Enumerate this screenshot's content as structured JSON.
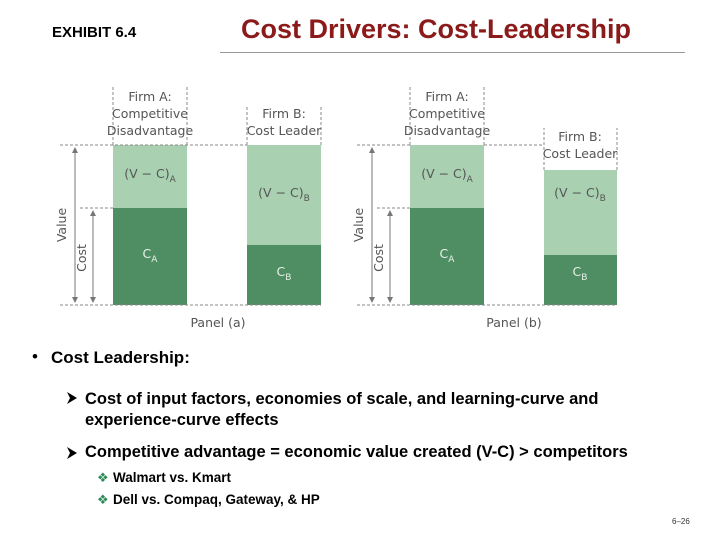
{
  "header": {
    "exhibit": "EXHIBIT 6.4",
    "title": "Cost Drivers: Cost-Leadership"
  },
  "panels": [
    {
      "label": "Panel (a)",
      "axis_value": "Value",
      "axis_cost": "Cost",
      "firms": [
        {
          "name_lines": [
            "Firm A:",
            "Competitive",
            "Disadvantage"
          ],
          "top": {
            "text": "(V − C)",
            "sub": "A"
          },
          "bottom": {
            "text": "C",
            "sub": "A"
          }
        },
        {
          "name_lines": [
            "Firm B:",
            "Cost Leader"
          ],
          "top": {
            "text": "(V − C)",
            "sub": "B"
          },
          "bottom": {
            "text": "C",
            "sub": "B"
          }
        }
      ]
    },
    {
      "label": "Panel (b)",
      "axis_value": "Value",
      "axis_cost": "Cost",
      "firms": [
        {
          "name_lines": [
            "Firm A:",
            "Competitive",
            "Disadvantage"
          ],
          "top": {
            "text": "(V − C)",
            "sub": "A"
          },
          "bottom": {
            "text": "C",
            "sub": "A"
          }
        },
        {
          "name_lines": [
            "Firm B:",
            "Cost Leader"
          ],
          "top": {
            "text": "(V − C)",
            "sub": "B"
          },
          "bottom": {
            "text": "C",
            "sub": "B"
          }
        }
      ]
    }
  ],
  "bullets": {
    "text": "Cost Leadership:",
    "items": [
      {
        "text": "Cost of input factors, economies of scale, and learning-curve and experience-curve effects"
      },
      {
        "text": "Competitive advantage = economic value created (V-C) > competitors",
        "items": [
          "Walmart vs. Kmart",
          "Dell vs. Compaq, Gateway, & HP"
        ]
      }
    ]
  },
  "page_number": "6–26"
}
